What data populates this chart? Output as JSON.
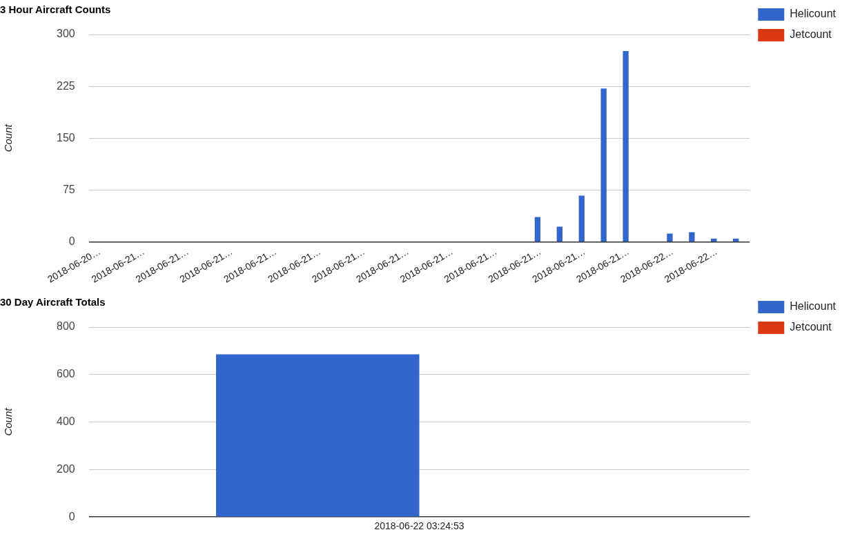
{
  "chart_data": [
    {
      "type": "bar",
      "title": "3 Hour Aircraft Counts",
      "ylabel": "Count",
      "categories": [
        "2018-06-20…",
        null,
        "2018-06-21…",
        null,
        "2018-06-21…",
        null,
        "2018-06-21…",
        null,
        "2018-06-21…",
        null,
        "2018-06-21…",
        null,
        "2018-06-21…",
        null,
        "2018-06-21…",
        null,
        "2018-06-21…",
        null,
        "2018-06-21…",
        null,
        "2018-06-21…",
        null,
        "2018-06-21…",
        null,
        "2018-06-21…",
        null,
        "2018-06-22…",
        null,
        "2018-06-22…",
        null
      ],
      "series": [
        {
          "name": "Helicount",
          "color": "#3366cc",
          "values": [
            0,
            0,
            0,
            0,
            0,
            0,
            0,
            0,
            0,
            0,
            0,
            0,
            0,
            0,
            0,
            0,
            0,
            0,
            0,
            0,
            36,
            22,
            67,
            222,
            276,
            0,
            12,
            14,
            5,
            5
          ]
        },
        {
          "name": "Jetcount",
          "color": "#dc3912",
          "values": [
            0,
            0,
            0,
            0,
            0,
            0,
            0,
            0,
            0,
            0,
            0,
            0,
            0,
            0,
            0,
            0,
            0,
            0,
            0,
            0,
            0,
            0,
            0,
            0,
            0,
            0,
            0,
            0,
            0,
            0
          ]
        }
      ],
      "ylim": [
        0,
        300
      ],
      "yticks": [
        0,
        75,
        150,
        225,
        300
      ],
      "grid": "y",
      "legend": "top right"
    },
    {
      "type": "bar",
      "title": "30 Day Aircraft Totals",
      "ylabel": "Count",
      "categories": [
        "2018-06-22 03:24:53"
      ],
      "series": [
        {
          "name": "Helicount",
          "color": "#3366cc",
          "values": [
            685
          ]
        },
        {
          "name": "Jetcount",
          "color": "#dc3912",
          "values": [
            0
          ]
        }
      ],
      "ylim": [
        0,
        800
      ],
      "yticks": [
        0,
        200,
        400,
        600,
        800
      ],
      "grid": "y",
      "legend": "top right"
    }
  ]
}
